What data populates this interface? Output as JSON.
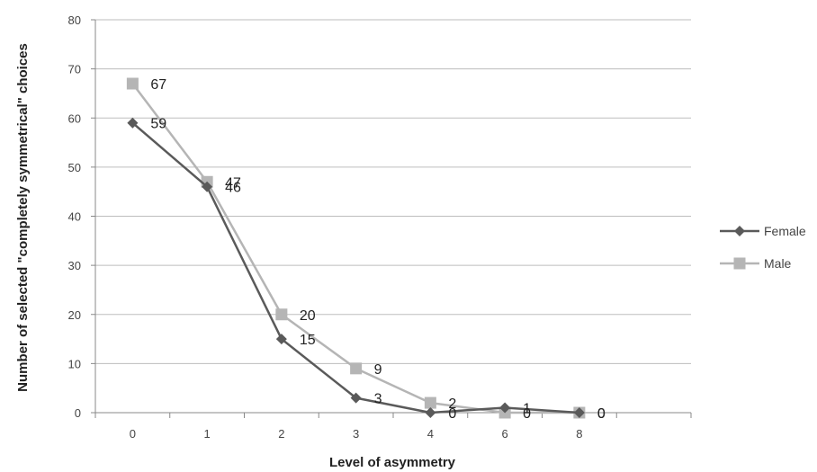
{
  "chart_data": {
    "type": "line",
    "categories": [
      "0",
      "1",
      "2",
      "3",
      "4",
      "6",
      "8"
    ],
    "xlabel": "Level of asymmetry",
    "ylabel": "Number of selected \"completely symmetrical\" choices",
    "ylim": [
      0,
      80
    ],
    "yticks": [
      0,
      10,
      20,
      30,
      40,
      50,
      60,
      70,
      80
    ],
    "grid": true,
    "legend_position": "right",
    "series": [
      {
        "name": "Female",
        "values": [
          59,
          46,
          15,
          3,
          0,
          1,
          0
        ],
        "color": "#5a5a5a",
        "marker": "diamond"
      },
      {
        "name": "Male",
        "values": [
          67,
          47,
          20,
          9,
          2,
          0,
          0
        ],
        "color": "#b5b5b5",
        "marker": "square"
      }
    ]
  }
}
